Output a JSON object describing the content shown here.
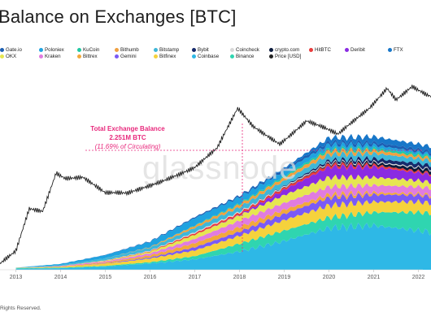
{
  "header": {
    "title": "Balance on Exchanges [BTC]"
  },
  "footer": {
    "text": "Rights Reserved."
  },
  "watermark": "glassnode",
  "annotation": {
    "line1": "Total Exchange Balance",
    "line2": "2.251M BTC",
    "line3": "(11.69% of Circulating)"
  },
  "legend": {
    "row1": [
      {
        "label": "Gate.io",
        "color": "#1d5fb3"
      },
      {
        "label": "Poloniex",
        "color": "#1fa3e0"
      },
      {
        "label": "KuCoin",
        "color": "#21c9a2"
      },
      {
        "label": "Bithumb",
        "color": "#f0a040"
      },
      {
        "label": "Bitstamp",
        "color": "#3fb7d8"
      },
      {
        "label": "Bybit",
        "color": "#162a6b"
      },
      {
        "label": "Coincheck",
        "color": "#d8d8d8"
      },
      {
        "label": "crypto.com",
        "color": "#0b1a3c"
      },
      {
        "label": "HitBTC",
        "color": "#e83b3b"
      },
      {
        "label": "Deribit",
        "color": "#8a2be2"
      },
      {
        "label": "FTX",
        "color": "#1877c9"
      }
    ],
    "row2": [
      {
        "label": "OKX",
        "color": "#e6e650"
      },
      {
        "label": "Kraken",
        "color": "#e07ce0"
      },
      {
        "label": "Bittrex",
        "color": "#f2a93b"
      },
      {
        "label": "Gemini",
        "color": "#7a5af5"
      },
      {
        "label": "Bitfinex",
        "color": "#f5d23c"
      },
      {
        "label": "Coinbase",
        "color": "#2eb8e6"
      },
      {
        "label": "Binance",
        "color": "#2fd5b0"
      },
      {
        "label": "Price [USD]",
        "color": "#222222"
      }
    ]
  },
  "chart_data": {
    "type": "area",
    "title": "Balance on Exchanges [BTC]",
    "x_ticks": [
      "2013",
      "2014",
      "2015",
      "2016",
      "2017",
      "2018",
      "2019",
      "2020",
      "2021",
      "2022"
    ],
    "x_range": [
      2012.5,
      2022.5
    ],
    "y_range_btc": [
      0,
      3300000
    ],
    "price_scale": "log",
    "price_range_usd": [
      2,
      100000
    ],
    "stacked_series": [
      {
        "name": "Coinbase",
        "color": "#2eb8e6",
        "points": [
          [
            2013.0,
            20000
          ],
          [
            2014.0,
            30000
          ],
          [
            2015.0,
            60000
          ],
          [
            2016.0,
            120000
          ],
          [
            2017.0,
            200000
          ],
          [
            2018.0,
            350000
          ],
          [
            2019.0,
            550000
          ],
          [
            2020.0,
            800000
          ],
          [
            2021.0,
            850000
          ],
          [
            2022.0,
            750000
          ],
          [
            2022.5,
            700000
          ]
        ]
      },
      {
        "name": "Binance",
        "color": "#2fd5b0",
        "points": [
          [
            2013.0,
            10000
          ],
          [
            2014.0,
            12000
          ],
          [
            2015.0,
            15000
          ],
          [
            2016.0,
            25000
          ],
          [
            2017.0,
            60000
          ],
          [
            2018.0,
            150000
          ],
          [
            2019.0,
            200000
          ],
          [
            2020.0,
            200000
          ],
          [
            2021.0,
            250000
          ],
          [
            2022.0,
            350000
          ],
          [
            2022.5,
            370000
          ]
        ]
      },
      {
        "name": "Bitfinex",
        "color": "#f5d23c",
        "points": [
          [
            2013.0,
            5000
          ],
          [
            2014.0,
            15000
          ],
          [
            2015.0,
            40000
          ],
          [
            2016.0,
            70000
          ],
          [
            2017.0,
            110000
          ],
          [
            2018.0,
            150000
          ],
          [
            2019.0,
            200000
          ],
          [
            2020.0,
            230000
          ],
          [
            2021.0,
            200000
          ],
          [
            2022.0,
            200000
          ],
          [
            2022.5,
            190000
          ]
        ]
      },
      {
        "name": "Gemini",
        "color": "#7a5af5",
        "points": [
          [
            2013.0,
            0
          ],
          [
            2014.0,
            0
          ],
          [
            2015.0,
            5000
          ],
          [
            2016.0,
            20000
          ],
          [
            2017.0,
            60000
          ],
          [
            2018.0,
            80000
          ],
          [
            2019.0,
            120000
          ],
          [
            2020.0,
            150000
          ],
          [
            2021.0,
            140000
          ],
          [
            2022.0,
            130000
          ],
          [
            2022.5,
            120000
          ]
        ]
      },
      {
        "name": "Bittrex",
        "color": "#f2a93b",
        "points": [
          [
            2013.0,
            0
          ],
          [
            2014.0,
            5000
          ],
          [
            2015.0,
            20000
          ],
          [
            2016.0,
            40000
          ],
          [
            2017.0,
            80000
          ],
          [
            2018.0,
            90000
          ],
          [
            2019.0,
            80000
          ],
          [
            2020.0,
            60000
          ],
          [
            2021.0,
            40000
          ],
          [
            2022.0,
            30000
          ],
          [
            2022.5,
            30000
          ]
        ]
      },
      {
        "name": "Kraken",
        "color": "#e07ce0",
        "points": [
          [
            2013.0,
            0
          ],
          [
            2014.0,
            10000
          ],
          [
            2015.0,
            20000
          ],
          [
            2016.0,
            40000
          ],
          [
            2017.0,
            80000
          ],
          [
            2018.0,
            120000
          ],
          [
            2019.0,
            130000
          ],
          [
            2020.0,
            150000
          ],
          [
            2021.0,
            140000
          ],
          [
            2022.0,
            130000
          ],
          [
            2022.5,
            130000
          ]
        ]
      },
      {
        "name": "OKX",
        "color": "#e6e650",
        "points": [
          [
            2013.0,
            0
          ],
          [
            2014.0,
            0
          ],
          [
            2015.0,
            10000
          ],
          [
            2016.0,
            30000
          ],
          [
            2017.0,
            80000
          ],
          [
            2018.0,
            100000
          ],
          [
            2019.0,
            150000
          ],
          [
            2020.0,
            180000
          ],
          [
            2021.0,
            150000
          ],
          [
            2022.0,
            120000
          ],
          [
            2022.5,
            110000
          ]
        ]
      },
      {
        "name": "Deribit",
        "color": "#8a2be2",
        "points": [
          [
            2013.0,
            0
          ],
          [
            2014.0,
            0
          ],
          [
            2015.0,
            0
          ],
          [
            2016.0,
            0
          ],
          [
            2017.0,
            0
          ],
          [
            2018.0,
            10000
          ],
          [
            2019.0,
            100000
          ],
          [
            2020.0,
            200000
          ],
          [
            2021.0,
            200000
          ],
          [
            2022.0,
            150000
          ],
          [
            2022.5,
            140000
          ]
        ]
      },
      {
        "name": "HitBTC",
        "color": "#e83b3b",
        "points": [
          [
            2013.0,
            0
          ],
          [
            2014.0,
            0
          ],
          [
            2015.0,
            5000
          ],
          [
            2016.0,
            10000
          ],
          [
            2017.0,
            30000
          ],
          [
            2018.0,
            40000
          ],
          [
            2019.0,
            40000
          ],
          [
            2020.0,
            50000
          ],
          [
            2021.0,
            40000
          ],
          [
            2022.0,
            30000
          ],
          [
            2022.5,
            30000
          ]
        ]
      },
      {
        "name": "crypto.com",
        "color": "#0b1a3c",
        "points": [
          [
            2013.0,
            0
          ],
          [
            2014.0,
            0
          ],
          [
            2015.0,
            0
          ],
          [
            2016.0,
            0
          ],
          [
            2017.0,
            0
          ],
          [
            2018.0,
            0
          ],
          [
            2019.0,
            5000
          ],
          [
            2020.0,
            20000
          ],
          [
            2021.0,
            40000
          ],
          [
            2022.0,
            60000
          ],
          [
            2022.5,
            60000
          ]
        ]
      },
      {
        "name": "Coincheck",
        "color": "#d8d8d8",
        "points": [
          [
            2013.0,
            0
          ],
          [
            2014.0,
            0
          ],
          [
            2015.0,
            5000
          ],
          [
            2016.0,
            10000
          ],
          [
            2017.0,
            20000
          ],
          [
            2018.0,
            20000
          ],
          [
            2019.0,
            20000
          ],
          [
            2020.0,
            20000
          ],
          [
            2021.0,
            20000
          ],
          [
            2022.0,
            20000
          ],
          [
            2022.5,
            20000
          ]
        ]
      },
      {
        "name": "Bybit",
        "color": "#162a6b",
        "points": [
          [
            2013.0,
            0
          ],
          [
            2014.0,
            0
          ],
          [
            2015.0,
            0
          ],
          [
            2016.0,
            0
          ],
          [
            2017.0,
            0
          ],
          [
            2018.0,
            0
          ],
          [
            2019.0,
            10000
          ],
          [
            2020.0,
            40000
          ],
          [
            2021.0,
            60000
          ],
          [
            2022.0,
            70000
          ],
          [
            2022.5,
            70000
          ]
        ]
      },
      {
        "name": "Bitstamp",
        "color": "#3fb7d8",
        "points": [
          [
            2013.0,
            5000
          ],
          [
            2014.0,
            20000
          ],
          [
            2015.0,
            40000
          ],
          [
            2016.0,
            60000
          ],
          [
            2017.0,
            80000
          ],
          [
            2018.0,
            90000
          ],
          [
            2019.0,
            100000
          ],
          [
            2020.0,
            110000
          ],
          [
            2021.0,
            100000
          ],
          [
            2022.0,
            90000
          ],
          [
            2022.5,
            90000
          ]
        ]
      },
      {
        "name": "Bithumb",
        "color": "#f0a040",
        "points": [
          [
            2013.0,
            0
          ],
          [
            2014.0,
            0
          ],
          [
            2015.0,
            0
          ],
          [
            2016.0,
            10000
          ],
          [
            2017.0,
            40000
          ],
          [
            2018.0,
            50000
          ],
          [
            2019.0,
            60000
          ],
          [
            2020.0,
            70000
          ],
          [
            2021.0,
            60000
          ],
          [
            2022.0,
            50000
          ],
          [
            2022.5,
            50000
          ]
        ]
      },
      {
        "name": "KuCoin",
        "color": "#21c9a2",
        "points": [
          [
            2013.0,
            0
          ],
          [
            2014.0,
            0
          ],
          [
            2015.0,
            0
          ],
          [
            2016.0,
            0
          ],
          [
            2017.0,
            10000
          ],
          [
            2018.0,
            20000
          ],
          [
            2019.0,
            30000
          ],
          [
            2020.0,
            40000
          ],
          [
            2021.0,
            40000
          ],
          [
            2022.0,
            40000
          ],
          [
            2022.5,
            40000
          ]
        ]
      },
      {
        "name": "Poloniex",
        "color": "#1fa3e0",
        "points": [
          [
            2013.0,
            0
          ],
          [
            2014.0,
            20000
          ],
          [
            2015.0,
            60000
          ],
          [
            2016.0,
            100000
          ],
          [
            2017.0,
            140000
          ],
          [
            2018.0,
            120000
          ],
          [
            2019.0,
            100000
          ],
          [
            2020.0,
            80000
          ],
          [
            2021.0,
            60000
          ],
          [
            2022.0,
            40000
          ],
          [
            2022.5,
            30000
          ]
        ]
      },
      {
        "name": "Gate.io",
        "color": "#1d5fb3",
        "points": [
          [
            2013.0,
            0
          ],
          [
            2014.0,
            0
          ],
          [
            2015.0,
            5000
          ],
          [
            2016.0,
            10000
          ],
          [
            2017.0,
            20000
          ],
          [
            2018.0,
            30000
          ],
          [
            2019.0,
            40000
          ],
          [
            2020.0,
            50000
          ],
          [
            2021.0,
            50000
          ],
          [
            2022.0,
            50000
          ],
          [
            2022.5,
            50000
          ]
        ]
      },
      {
        "name": "FTX",
        "color": "#1877c9",
        "points": [
          [
            2013.0,
            0
          ],
          [
            2014.0,
            0
          ],
          [
            2015.0,
            0
          ],
          [
            2016.0,
            0
          ],
          [
            2017.0,
            0
          ],
          [
            2018.0,
            0
          ],
          [
            2019.0,
            20000
          ],
          [
            2020.0,
            80000
          ],
          [
            2021.0,
            110000
          ],
          [
            2022.0,
            100000
          ],
          [
            2022.5,
            90000
          ]
        ]
      }
    ],
    "price_series": {
      "name": "Price [USD]",
      "color": "#222222",
      "points": [
        [
          2012.5,
          5
        ],
        [
          2013.0,
          13
        ],
        [
          2013.3,
          120
        ],
        [
          2013.6,
          110
        ],
        [
          2013.9,
          800
        ],
        [
          2014.1,
          600
        ],
        [
          2014.5,
          600
        ],
        [
          2015.0,
          250
        ],
        [
          2015.5,
          250
        ],
        [
          2016.0,
          400
        ],
        [
          2016.5,
          650
        ],
        [
          2017.0,
          1000
        ],
        [
          2017.5,
          2500
        ],
        [
          2017.96,
          19000
        ],
        [
          2018.3,
          8000
        ],
        [
          2018.9,
          3500
        ],
        [
          2019.5,
          11000
        ],
        [
          2019.9,
          7200
        ],
        [
          2020.2,
          5000
        ],
        [
          2020.6,
          11000
        ],
        [
          2020.9,
          20000
        ],
        [
          2021.3,
          60000
        ],
        [
          2021.5,
          34000
        ],
        [
          2021.86,
          66000
        ],
        [
          2022.2,
          40000
        ],
        [
          2022.5,
          30000
        ]
      ]
    }
  }
}
